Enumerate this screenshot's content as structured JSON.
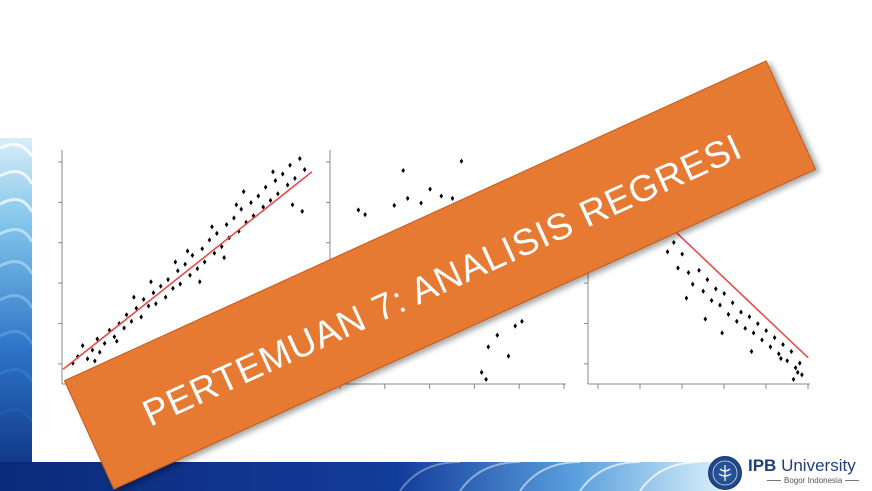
{
  "slide": {
    "title": "PERTEMUAN 7: ANALISIS REGRESI",
    "colors": {
      "banner": "#e67a33",
      "banner_text": "#ffffff",
      "theme_blue_dark": "#0d2a78",
      "theme_blue_light": "#bfe3f5",
      "regression_line": "#e74c4c",
      "points": "#000000"
    }
  },
  "logo": {
    "name_bold": "IPB",
    "name_rest": "University",
    "location": "Bogor Indonesia",
    "icon": "ipb-seal-icon"
  },
  "chart_data": [
    {
      "type": "scatter",
      "title": "",
      "xlabel": "",
      "ylabel": "",
      "xlim": [
        0,
        10
      ],
      "ylim": [
        0,
        10
      ],
      "trend": "positive",
      "regression_line": {
        "slope": 0.88,
        "intercept": 0.3
      },
      "points": [
        [
          0.2,
          0.4
        ],
        [
          0.4,
          0.7
        ],
        [
          0.6,
          1.2
        ],
        [
          0.8,
          0.6
        ],
        [
          1.0,
          1.0
        ],
        [
          1.2,
          1.5
        ],
        [
          1.3,
          0.9
        ],
        [
          1.5,
          1.3
        ],
        [
          1.7,
          1.9
        ],
        [
          1.9,
          1.6
        ],
        [
          2.1,
          2.2
        ],
        [
          2.3,
          2.0
        ],
        [
          2.4,
          2.6
        ],
        [
          2.6,
          2.3
        ],
        [
          2.8,
          2.9
        ],
        [
          3.0,
          2.5
        ],
        [
          3.1,
          3.3
        ],
        [
          3.3,
          3.0
        ],
        [
          3.5,
          3.6
        ],
        [
          3.6,
          3.1
        ],
        [
          3.8,
          3.9
        ],
        [
          4.0,
          3.4
        ],
        [
          4.1,
          4.2
        ],
        [
          4.3,
          3.8
        ],
        [
          4.5,
          4.6
        ],
        [
          4.6,
          4.0
        ],
        [
          4.8,
          4.9
        ],
        [
          5.0,
          4.4
        ],
        [
          5.1,
          5.3
        ],
        [
          5.3,
          4.7
        ],
        [
          5.5,
          5.6
        ],
        [
          5.6,
          5.0
        ],
        [
          5.8,
          6.0
        ],
        [
          6.0,
          5.4
        ],
        [
          6.1,
          6.3
        ],
        [
          6.3,
          5.7
        ],
        [
          6.5,
          6.7
        ],
        [
          6.6,
          6.1
        ],
        [
          6.8,
          7.0
        ],
        [
          7.0,
          6.4
        ],
        [
          7.1,
          7.4
        ],
        [
          7.3,
          6.8
        ],
        [
          7.5,
          7.7
        ],
        [
          7.6,
          7.1
        ],
        [
          7.8,
          8.0
        ],
        [
          8.0,
          7.5
        ],
        [
          8.1,
          8.4
        ],
        [
          8.3,
          7.8
        ],
        [
          8.5,
          8.7
        ],
        [
          8.6,
          8.1
        ],
        [
          8.8,
          9.0
        ],
        [
          9.0,
          8.5
        ],
        [
          9.1,
          9.4
        ],
        [
          9.3,
          8.8
        ],
        [
          9.5,
          9.7
        ],
        [
          9.7,
          9.2
        ],
        [
          2.0,
          1.4
        ],
        [
          3.4,
          4.1
        ],
        [
          4.4,
          5.0
        ],
        [
          5.4,
          4.1
        ],
        [
          6.4,
          5.2
        ],
        [
          7.2,
          8.2
        ],
        [
          8.4,
          9.1
        ],
        [
          9.2,
          7.6
        ],
        [
          9.6,
          7.3
        ],
        [
          1.1,
          0.5
        ],
        [
          2.7,
          3.4
        ],
        [
          4.9,
          5.5
        ],
        [
          6.9,
          7.6
        ],
        [
          5.9,
          6.6
        ]
      ]
    },
    {
      "type": "scatter",
      "title": "",
      "xlabel": "",
      "ylabel": "",
      "xlim": [
        0,
        10
      ],
      "ylim": [
        0,
        10
      ],
      "trend": "none",
      "points": [
        [
          1.0,
          7.5
        ],
        [
          1.3,
          7.3
        ],
        [
          2.6,
          7.7
        ],
        [
          3.0,
          9.2
        ],
        [
          3.2,
          8.0
        ],
        [
          3.5,
          6.5
        ],
        [
          3.8,
          7.8
        ],
        [
          4.0,
          6.9
        ],
        [
          4.2,
          8.4
        ],
        [
          4.5,
          7.1
        ],
        [
          4.7,
          8.1
        ],
        [
          5.0,
          6.6
        ],
        [
          5.2,
          8.0
        ],
        [
          5.4,
          7.4
        ],
        [
          5.6,
          9.6
        ],
        [
          5.8,
          6.0
        ],
        [
          6.0,
          7.7
        ],
        [
          6.1,
          5.2
        ],
        [
          6.3,
          7.2
        ],
        [
          6.6,
          4.6
        ],
        [
          2.2,
          5.7
        ],
        [
          2.8,
          4.4
        ],
        [
          3.3,
          3.6
        ],
        [
          4.2,
          3.9
        ],
        [
          5.0,
          3.3
        ],
        [
          5.8,
          2.6
        ],
        [
          6.3,
          2.7
        ],
        [
          6.8,
          1.6
        ],
        [
          7.2,
          2.1
        ],
        [
          8.0,
          2.5
        ],
        [
          8.3,
          2.7
        ],
        [
          7.7,
          1.2
        ],
        [
          6.5,
          0.5
        ],
        [
          6.7,
          0.2
        ]
      ]
    },
    {
      "type": "scatter",
      "title": "",
      "xlabel": "",
      "ylabel": "",
      "xlim": [
        0,
        10
      ],
      "ylim": [
        0,
        10
      ],
      "trend": "negative",
      "regression_line": {
        "slope": -0.86,
        "intercept": 9.9
      },
      "points": [
        [
          0.3,
          9.6
        ],
        [
          0.5,
          8.8
        ],
        [
          1.0,
          9.1
        ],
        [
          1.5,
          8.4
        ],
        [
          2.0,
          8.6
        ],
        [
          2.4,
          7.6
        ],
        [
          2.8,
          7.3
        ],
        [
          3.0,
          6.3
        ],
        [
          3.3,
          6.8
        ],
        [
          3.5,
          5.7
        ],
        [
          3.8,
          6.1
        ],
        [
          4.0,
          5.0
        ],
        [
          4.2,
          5.6
        ],
        [
          4.5,
          4.8
        ],
        [
          4.7,
          4.3
        ],
        [
          5.0,
          4.9
        ],
        [
          5.2,
          4.0
        ],
        [
          5.4,
          4.5
        ],
        [
          5.6,
          3.6
        ],
        [
          5.8,
          4.1
        ],
        [
          6.0,
          3.4
        ],
        [
          6.2,
          3.9
        ],
        [
          6.4,
          3.0
        ],
        [
          6.6,
          3.5
        ],
        [
          6.8,
          2.7
        ],
        [
          7.0,
          3.1
        ],
        [
          7.2,
          2.4
        ],
        [
          7.4,
          2.9
        ],
        [
          7.6,
          2.2
        ],
        [
          7.8,
          2.6
        ],
        [
          8.0,
          1.9
        ],
        [
          8.2,
          2.3
        ],
        [
          8.4,
          1.6
        ],
        [
          8.6,
          2.0
        ],
        [
          8.8,
          1.3
        ],
        [
          9.0,
          1.7
        ],
        [
          9.2,
          1.0
        ],
        [
          9.4,
          1.4
        ],
        [
          9.6,
          0.7
        ],
        [
          9.8,
          0.9
        ],
        [
          9.9,
          0.4
        ],
        [
          9.5,
          0.2
        ],
        [
          9.7,
          0.5
        ],
        [
          6.1,
          2.2
        ],
        [
          7.5,
          1.4
        ],
        [
          8.9,
          1.1
        ],
        [
          4.4,
          3.7
        ],
        [
          5.3,
          2.8
        ]
      ]
    }
  ]
}
